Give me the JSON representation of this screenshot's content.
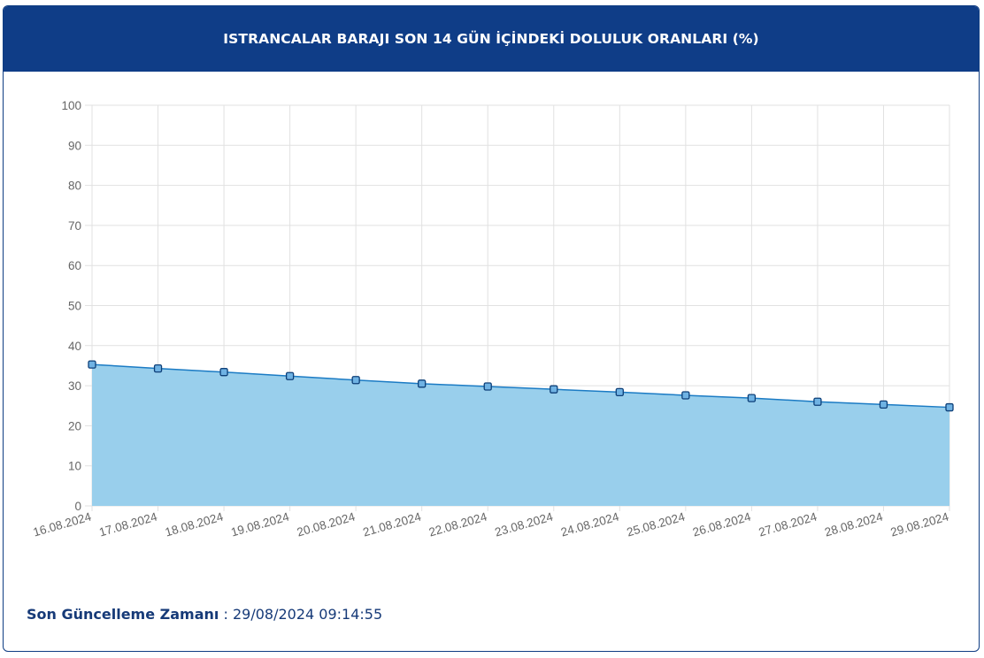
{
  "header": {
    "title": "ISTRANCALAR BARAJI SON 14 GÜN İÇİNDEKİ DOLULUK ORANLARI (%)"
  },
  "footer": {
    "label": "Son Güncelleme Zamanı",
    "separator": " : ",
    "value": "29/08/2024 09:14:55"
  },
  "colors": {
    "header_bg": "#0f3d87",
    "line": "#1b7bc4",
    "fill": "#99cfec",
    "point_fill": "#6fb2e3",
    "point_stroke": "#0d3f78",
    "grid": "#e1e1e1",
    "footer_text": "#163a78"
  },
  "chart_data": {
    "type": "area",
    "categories": [
      "16.08.2024",
      "17.08.2024",
      "18.08.2024",
      "19.08.2024",
      "20.08.2024",
      "21.08.2024",
      "22.08.2024",
      "23.08.2024",
      "24.08.2024",
      "25.08.2024",
      "26.08.2024",
      "27.08.2024",
      "28.08.2024",
      "29.08.2024"
    ],
    "series": [
      {
        "values": [
          35.3,
          34.3,
          33.4,
          32.4,
          31.4,
          30.5,
          29.8,
          29.1,
          28.4,
          27.6,
          26.9,
          26.0,
          25.3,
          24.6
        ]
      }
    ],
    "yticks": [
      0,
      10,
      20,
      30,
      40,
      50,
      60,
      70,
      80,
      90,
      100
    ],
    "ylim": [
      0,
      100
    ],
    "grid": true,
    "point_style": "square"
  }
}
